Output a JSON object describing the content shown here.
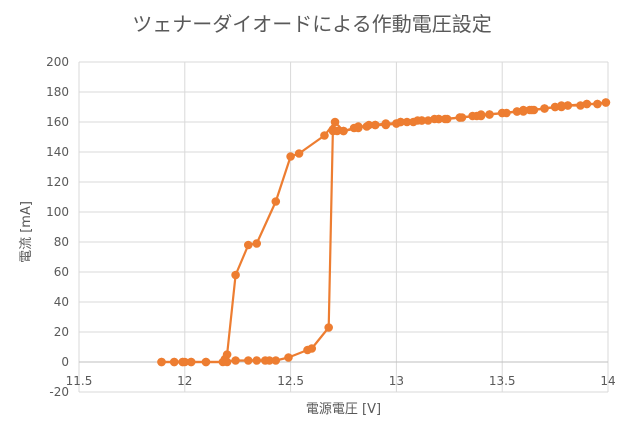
{
  "chart_data": {
    "type": "scatter",
    "title": "ツェナーダイオードによる作動電圧設定",
    "xlabel": "電源電圧 [V]",
    "ylabel": "電流 [mA]",
    "xlim": [
      11.5,
      14
    ],
    "ylim": [
      -20,
      200
    ],
    "xticks": [
      11.5,
      12,
      12.5,
      13,
      13.5,
      14
    ],
    "xtick_labels": [
      "11.5",
      "12",
      "12.5",
      "13",
      "13.5",
      "14"
    ],
    "yticks": [
      -20,
      0,
      20,
      40,
      60,
      80,
      100,
      120,
      140,
      160,
      180,
      200
    ],
    "ytick_labels": [
      "-20",
      "0",
      "20",
      "40",
      "60",
      "80",
      "100",
      "120",
      "140",
      "160",
      "180",
      "200"
    ],
    "grid": true,
    "legend": "none",
    "colors": {
      "series": "#ed7d31",
      "grid": "#d9d9d9",
      "text": "#595959",
      "axis": "#bfbfbf"
    },
    "series": [
      {
        "x": [
          11.89,
          11.95,
          11.99,
          12.0,
          12.03,
          12.1,
          12.18,
          12.24,
          12.3,
          12.34,
          12.38,
          12.4,
          12.43,
          12.49,
          12.58,
          12.6,
          12.68,
          12.7,
          12.7,
          12.72,
          12.75,
          12.8,
          12.82,
          12.86,
          12.9,
          12.95,
          13.0,
          13.02,
          13.05,
          13.1,
          13.12,
          13.18,
          13.2,
          13.23,
          13.3,
          13.31,
          13.36,
          13.4,
          13.44,
          13.5,
          13.52,
          13.57,
          13.6,
          13.63,
          13.65,
          13.7,
          13.75,
          13.78,
          13.81,
          13.87,
          13.9,
          13.95,
          13.99
        ],
        "y": [
          0,
          0,
          0,
          0,
          0,
          0,
          0,
          1,
          1,
          1,
          1,
          1,
          1,
          3,
          8,
          9,
          23,
          155,
          154,
          154,
          154,
          156,
          157,
          157,
          158,
          158,
          159,
          160,
          160,
          161,
          161,
          162,
          162,
          162,
          163,
          163,
          164,
          164,
          165,
          166,
          166,
          167,
          167,
          168,
          168,
          169,
          170,
          170,
          171,
          171,
          172,
          172,
          173
        ]
      },
      {
        "x": [
          13.99,
          13.95,
          13.9,
          13.81,
          13.78,
          13.75,
          13.7,
          13.64,
          13.6,
          13.57,
          13.5,
          13.44,
          13.4,
          13.38,
          13.3,
          13.24,
          13.2,
          13.15,
          13.12,
          13.08,
          13.02,
          13.0,
          12.95,
          12.9,
          12.87,
          12.82,
          12.75,
          12.71,
          12.66,
          12.54,
          12.5,
          12.43,
          12.34,
          12.3,
          12.24,
          12.2,
          12.19,
          12.2,
          12.1,
          12.03,
          11.99,
          11.95,
          11.89
        ],
        "y": [
          173,
          172,
          172,
          171,
          171,
          170,
          169,
          168,
          168,
          167,
          166,
          165,
          165,
          164,
          163,
          162,
          162,
          161,
          161,
          160,
          160,
          159,
          159,
          158,
          158,
          156,
          154,
          160,
          151,
          139,
          137,
          107,
          79,
          78,
          58,
          5,
          2,
          0,
          0,
          0,
          0,
          0,
          0
        ]
      }
    ]
  }
}
